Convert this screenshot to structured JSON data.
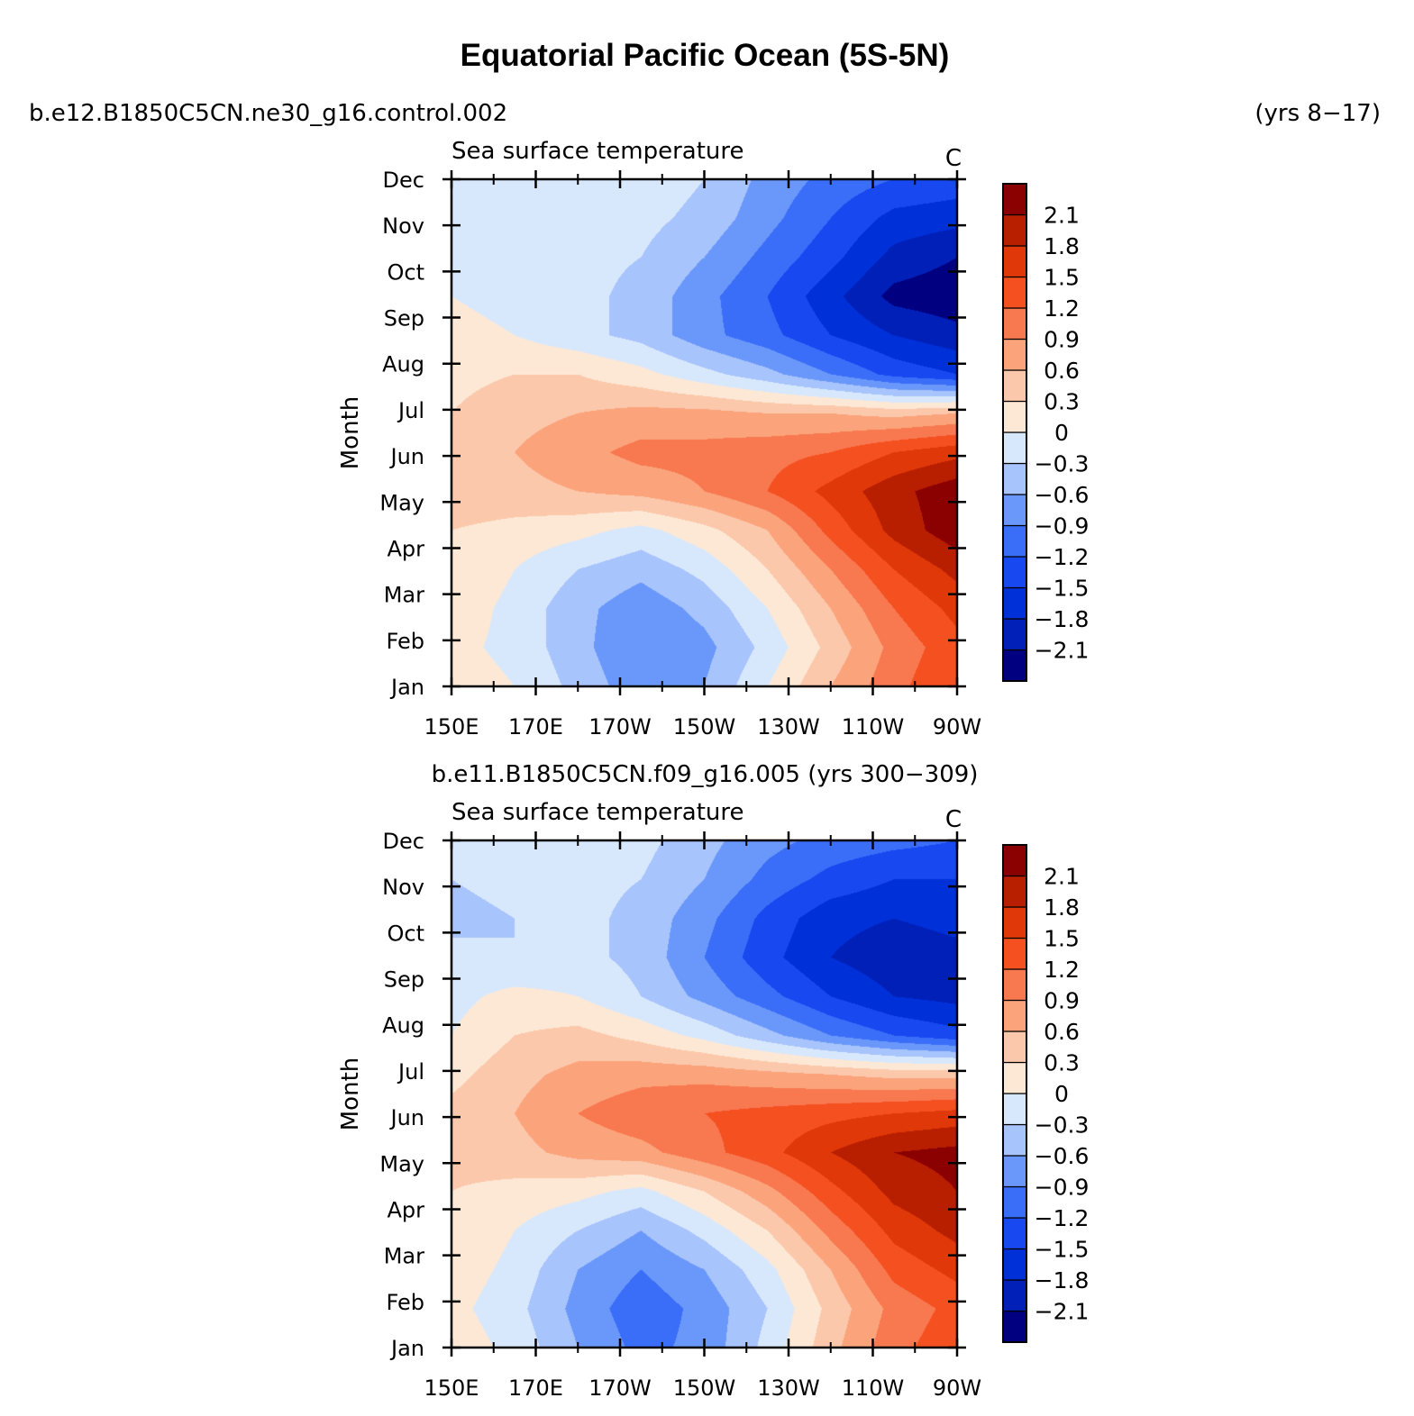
{
  "header": {
    "title": "Equatorial Pacific Ocean (5S-5N)",
    "case_top_left": "b.e12.B1850C5CN.ne30_g16.control.002",
    "case_top_right": "(yrs 8−17)",
    "case_bottom": "b.e11.B1850C5CN.f09_g16.005 (yrs 300−309)"
  },
  "chart_data": [
    {
      "type": "heatmap",
      "title": "Sea surface temperature",
      "units": "C",
      "ylabel": "Month",
      "x_ticks": [
        "150E",
        "170E",
        "170W",
        "150W",
        "130W",
        "110W",
        "90W"
      ],
      "x": [
        150,
        170,
        190,
        210,
        230,
        250,
        270
      ],
      "y_ticks": [
        "Jan",
        "Feb",
        "Mar",
        "Apr",
        "May",
        "Jun",
        "Jul",
        "Aug",
        "Sep",
        "Oct",
        "Nov",
        "Dec"
      ],
      "contour_levels": [
        -2.1,
        -1.8,
        -1.5,
        -1.2,
        -0.9,
        -0.6,
        -0.3,
        0,
        0.3,
        0.6,
        0.9,
        1.2,
        1.5,
        1.8,
        2.1
      ],
      "colorbar_labels": [
        "2.1",
        "1.8",
        "1.5",
        "1.2",
        "0.9",
        "0.6",
        "0.3",
        "0",
        "−0.3",
        "−0.6",
        "−0.9",
        "−1.2",
        "−1.5",
        "−1.8",
        "−2.1"
      ],
      "colors": [
        "#000080",
        "#0020b8",
        "#0030d8",
        "#1848f0",
        "#3a6ef8",
        "#6a98fa",
        "#a8c4fc",
        "#d8e8fc",
        "#fde8d6",
        "#fcc8ac",
        "#fba47c",
        "#f87850",
        "#f55020",
        "#e03808",
        "#b81f00",
        "#8b0000"
      ],
      "values": [
        [
          0.2,
          0.0,
          -0.4,
          -0.8,
          -0.6,
          0.0,
          0.6,
          1.1,
          1.5
        ],
        [
          0.1,
          -0.1,
          -0.5,
          -0.9,
          -0.7,
          -0.2,
          0.4,
          1.0,
          1.4
        ],
        [
          0.2,
          -0.1,
          -0.5,
          -0.8,
          -0.5,
          0.0,
          0.6,
          1.2,
          1.6
        ],
        [
          0.3,
          0.0,
          -0.3,
          -0.5,
          -0.2,
          0.3,
          0.9,
          1.5,
          1.9
        ],
        [
          0.3,
          0.2,
          0.1,
          -0.1,
          0.2,
          0.6,
          1.3,
          1.9,
          2.3
        ],
        [
          0.5,
          0.5,
          0.6,
          0.7,
          0.9,
          1.2,
          1.6,
          2.0,
          2.3
        ],
        [
          0.4,
          0.6,
          0.8,
          1.0,
          1.0,
          1.1,
          1.2,
          1.5,
          1.7
        ],
        [
          0.3,
          0.5,
          0.6,
          0.7,
          0.7,
          0.6,
          0.6,
          0.5,
          0.6
        ],
        [
          0.2,
          0.3,
          0.3,
          0.1,
          -0.2,
          -0.5,
          -0.9,
          -1.3,
          -1.5
        ],
        [
          0.1,
          0.0,
          -0.2,
          -0.4,
          -0.8,
          -1.1,
          -1.5,
          -1.8,
          -2.0
        ],
        [
          0.0,
          -0.1,
          -0.2,
          -0.4,
          -0.8,
          -1.2,
          -1.7,
          -2.2,
          -2.3
        ],
        [
          -0.1,
          -0.1,
          -0.2,
          -0.3,
          -0.6,
          -1.0,
          -1.4,
          -1.9,
          -2.1
        ],
        [
          -0.1,
          -0.2,
          -0.2,
          -0.2,
          -0.4,
          -0.8,
          -1.2,
          -1.6,
          -1.7
        ],
        [
          0.0,
          -0.1,
          -0.1,
          -0.1,
          -0.3,
          -0.7,
          -1.0,
          -1.2,
          -1.3
        ]
      ]
    },
    {
      "type": "heatmap",
      "title": "Sea surface temperature",
      "units": "C",
      "ylabel": "Month",
      "x_ticks": [
        "150E",
        "170E",
        "170W",
        "150W",
        "130W",
        "110W",
        "90W"
      ],
      "x": [
        150,
        170,
        190,
        210,
        230,
        250,
        270
      ],
      "y_ticks": [
        "Jan",
        "Feb",
        "Mar",
        "Apr",
        "May",
        "Jun",
        "Jul",
        "Aug",
        "Sep",
        "Oct",
        "Nov",
        "Dec"
      ],
      "contour_levels": [
        -2.1,
        -1.8,
        -1.5,
        -1.2,
        -0.9,
        -0.6,
        -0.3,
        0,
        0.3,
        0.6,
        0.9,
        1.2,
        1.5,
        1.8,
        2.1
      ],
      "colorbar_labels": [
        "2.1",
        "1.8",
        "1.5",
        "1.2",
        "0.9",
        "0.6",
        "0.3",
        "0",
        "−0.3",
        "−0.6",
        "−0.9",
        "−1.2",
        "−1.5",
        "−1.8",
        "−2.1"
      ],
      "colors": [
        "#000080",
        "#0020b8",
        "#0030d8",
        "#1848f0",
        "#3a6ef8",
        "#6a98fa",
        "#a8c4fc",
        "#d8e8fc",
        "#fde8d6",
        "#fcc8ac",
        "#fba47c",
        "#f87850",
        "#f55020",
        "#e03808",
        "#b81f00",
        "#8b0000"
      ],
      "values": [
        [
          0.2,
          -0.1,
          -0.6,
          -1.0,
          -0.8,
          -0.2,
          0.5,
          1.1,
          1.4
        ],
        [
          0.1,
          -0.2,
          -0.7,
          -1.1,
          -0.8,
          -0.3,
          0.4,
          1.0,
          1.3
        ],
        [
          0.2,
          -0.1,
          -0.6,
          -0.9,
          -0.6,
          -0.1,
          0.6,
          1.3,
          1.6
        ],
        [
          0.3,
          0.0,
          -0.3,
          -0.6,
          -0.2,
          0.3,
          1.0,
          1.6,
          1.9
        ],
        [
          0.3,
          0.2,
          0.1,
          -0.1,
          0.3,
          0.8,
          1.4,
          1.9,
          2.1
        ],
        [
          0.4,
          0.5,
          0.7,
          0.8,
          1.1,
          1.4,
          1.8,
          2.1,
          2.2
        ],
        [
          0.4,
          0.6,
          0.9,
          1.1,
          1.2,
          1.3,
          1.4,
          1.5,
          1.6
        ],
        [
          0.2,
          0.5,
          0.7,
          0.8,
          0.8,
          0.7,
          0.6,
          0.5,
          0.5
        ],
        [
          0.0,
          0.3,
          0.4,
          0.2,
          -0.1,
          -0.5,
          -0.9,
          -1.2,
          -1.4
        ],
        [
          -0.1,
          0.1,
          0.0,
          -0.3,
          -0.7,
          -1.1,
          -1.5,
          -1.8,
          -1.9
        ],
        [
          -0.2,
          -0.3,
          -0.2,
          -0.4,
          -0.9,
          -1.4,
          -1.8,
          -2.0,
          -1.9
        ],
        [
          -0.4,
          -0.3,
          -0.2,
          -0.4,
          -0.8,
          -1.3,
          -1.7,
          -1.8,
          -1.7
        ],
        [
          -0.3,
          -0.2,
          -0.2,
          -0.3,
          -0.6,
          -1.0,
          -1.3,
          -1.5,
          -1.5
        ],
        [
          -0.1,
          -0.1,
          -0.1,
          -0.2,
          -0.5,
          -0.8,
          -1.0,
          -1.1,
          -1.2
        ]
      ]
    }
  ]
}
